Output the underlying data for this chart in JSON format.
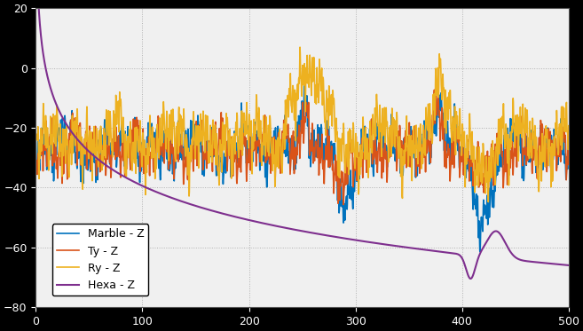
{
  "title": "",
  "xlabel": "",
  "ylabel": "",
  "xlim": [
    0,
    500
  ],
  "ylim": [
    -80,
    20
  ],
  "grid_color": "#b0b0b0",
  "bg_color": "#f0f0f0",
  "line_colors": {
    "marble": "#0072bd",
    "ty": "#d95319",
    "ry": "#edb120",
    "hexa": "#7e2f8e"
  },
  "legend_labels": [
    "Marble - Z",
    "Ty - Z",
    "Ry - Z",
    "Hexa - Z"
  ],
  "figsize": [
    6.57,
    3.73
  ],
  "dpi": 100,
  "yticks": [
    -80,
    -60,
    -40,
    -20,
    0,
    20
  ],
  "xticks": [
    0,
    100,
    200,
    300,
    400,
    500
  ]
}
